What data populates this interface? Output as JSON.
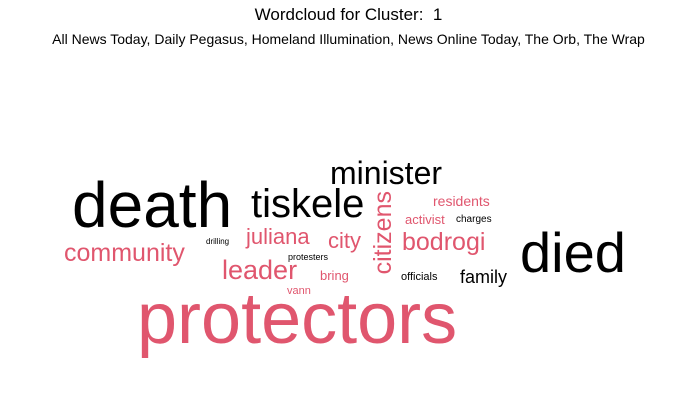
{
  "title": "Wordcloud for Cluster:  1",
  "subtitle": "All News Today, Daily Pegasus, Homeland Illumination, News Online Today, The Orb, The Wrap",
  "colors": {
    "primary": "#000000",
    "accent": "#e0566e"
  },
  "words": {
    "protectors": {
      "text": "protectors",
      "color": "#e0566e"
    },
    "death": {
      "text": "death",
      "color": "#000000"
    },
    "died": {
      "text": "died",
      "color": "#000000"
    },
    "tiskele": {
      "text": "tiskele",
      "color": "#000000"
    },
    "minister": {
      "text": "minister",
      "color": "#000000"
    },
    "community": {
      "text": "community",
      "color": "#e0566e"
    },
    "leader": {
      "text": "leader",
      "color": "#e0566e"
    },
    "bodrogi": {
      "text": "bodrogi",
      "color": "#e0566e"
    },
    "juliana": {
      "text": "juliana",
      "color": "#e0566e"
    },
    "city": {
      "text": "city",
      "color": "#e0566e"
    },
    "citizens": {
      "text": "citizens",
      "color": "#e0566e"
    },
    "family": {
      "text": "family",
      "color": "#000000"
    },
    "residents": {
      "text": "residents",
      "color": "#e0566e"
    },
    "activist": {
      "text": "activist",
      "color": "#e0566e"
    },
    "charges": {
      "text": "charges",
      "color": "#000000"
    },
    "drilling": {
      "text": "drilling",
      "color": "#000000"
    },
    "protesters": {
      "text": "protesters",
      "color": "#000000"
    },
    "bring": {
      "text": "bring",
      "color": "#e0566e"
    },
    "officials": {
      "text": "officials",
      "color": "#000000"
    },
    "vann": {
      "text": "vann",
      "color": "#e0566e"
    }
  }
}
